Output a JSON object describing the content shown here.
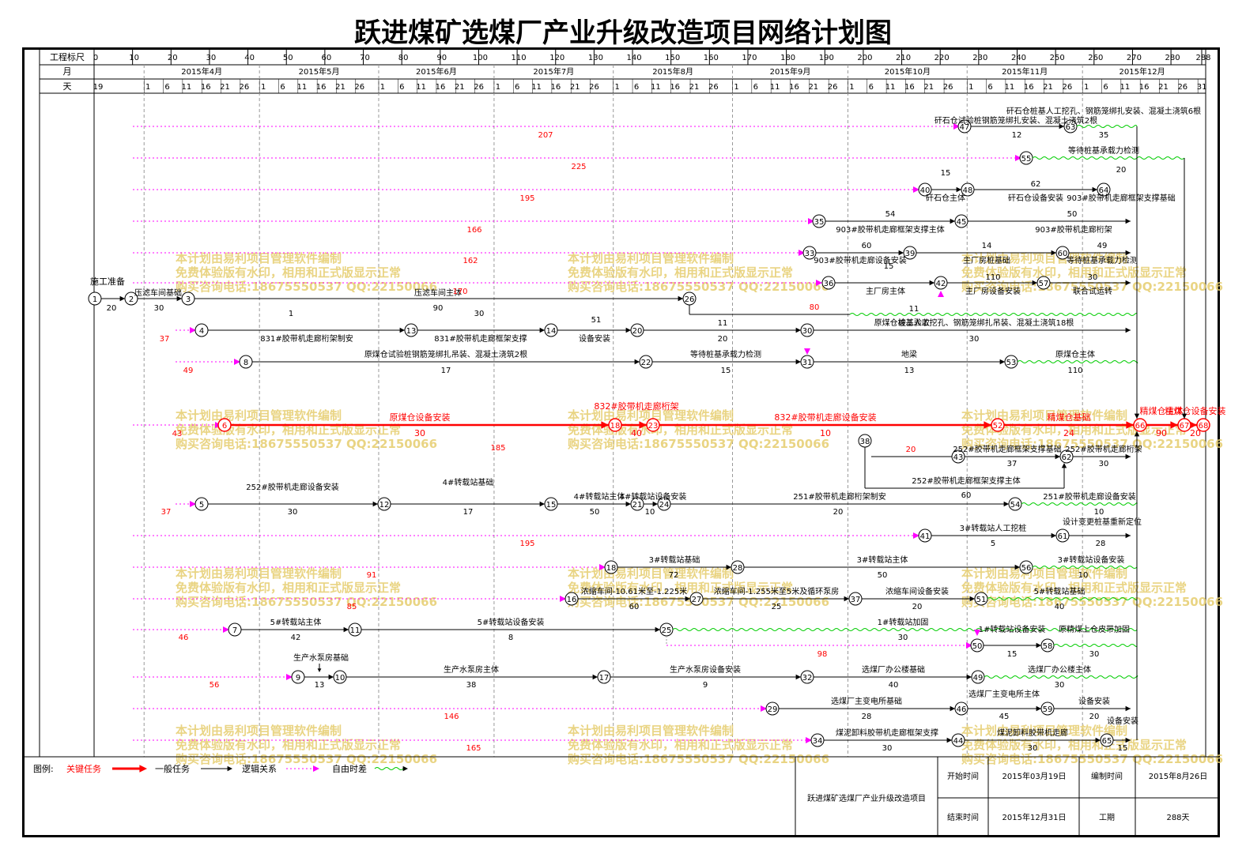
{
  "title": "跃进煤矿选煤厂产业升级改造项目网络计划图",
  "header": {
    "row_labels": [
      "工程标尺",
      "月",
      "天"
    ],
    "scale_ticks": [
      "0",
      "10",
      "20",
      "30",
      "40",
      "50",
      "60",
      "70",
      "80",
      "90",
      "100",
      "110",
      "120",
      "130",
      "140",
      "150",
      "160",
      "170",
      "180",
      "190",
      "200",
      "210",
      "220",
      "230",
      "240",
      "250",
      "260",
      "270",
      "280",
      "288"
    ],
    "months": [
      "2015年4月",
      "2015年5月",
      "2015年6月",
      "2015年7月",
      "2015年8月",
      "2015年9月",
      "2015年10月",
      "2015年11月",
      "2015年12月"
    ],
    "days": [
      "19",
      "1",
      "6",
      "11",
      "16",
      "21",
      "26",
      "1",
      "6",
      "11",
      "16",
      "21",
      "26",
      "1",
      "6",
      "11",
      "16",
      "21",
      "26",
      "1",
      "6",
      "11",
      "16",
      "21",
      "26",
      "1",
      "6",
      "11",
      "16",
      "21",
      "26",
      "1",
      "6",
      "11",
      "16",
      "21",
      "26",
      "1",
      "6",
      "11",
      "16",
      "21",
      "26",
      "1",
      "6",
      "11",
      "16",
      "21",
      "26",
      "1",
      "6",
      "11",
      "16",
      "21",
      "26",
      "31"
    ]
  },
  "watermark": [
    "本计划由易利项目管理软件编制",
    "免费体验版有水印，相用和正式版显示正常",
    "购买咨询电话:18675550537 QQ:22150066"
  ],
  "nodes": [
    "1",
    "2",
    "3",
    "4",
    "5",
    "6",
    "7",
    "8",
    "9",
    "10",
    "11",
    "12",
    "13",
    "14",
    "15",
    "16",
    "17",
    "18",
    "20",
    "21",
    "22",
    "23",
    "24",
    "25",
    "26",
    "27",
    "28",
    "29",
    "30",
    "31",
    "32",
    "33",
    "34",
    "35",
    "36",
    "37",
    "38",
    "39",
    "40",
    "41",
    "42",
    "43",
    "44",
    "45",
    "46",
    "47",
    "48",
    "49",
    "50",
    "51",
    "52",
    "53",
    "54",
    "55",
    "56",
    "57",
    "58",
    "59",
    "60",
    "61",
    "62",
    "63",
    "64",
    "65",
    "66",
    "67",
    "68"
  ],
  "task_labels": [
    "施工准备",
    "20",
    "压滤车间基础",
    "30",
    "压滤车间主体",
    "90",
    "矸石仓桩基人工挖孔、钢筋笼绑扎安装、混凝土浇筑6根",
    "35",
    "矸石仓试验桩钢筋笼绑扎安装、混凝土浇筑2根",
    "12",
    "等待桩基承载力检测",
    "15",
    "矸石仓主体",
    "62",
    "矸石仓设备安装",
    "20",
    "903#胶带机走廊框架支撑基础",
    "54",
    "903#胶带机走廊框架支撑主体",
    "50",
    "903#胶带机走廊桁架",
    "60",
    "903#胶带机走廊设备安装",
    "14",
    "主厂房桩基础",
    "49",
    "等待桩基承载力检测",
    "15",
    "主厂房主体",
    "110",
    "主厂房设备安装",
    "30",
    "联合试运转",
    "11",
    "竣工验收",
    "1",
    "831#胶带机走廊桁架制安",
    "30",
    "831#胶带机走廊框架支撑",
    "51",
    "设备安装",
    "11",
    "20",
    "原煤仓桩基人工挖孔、钢筋笼绑扎吊装、混凝土浇筑18根",
    "30",
    "原煤仓试验桩钢筋笼绑扎吊装、混凝土浇筑2根",
    "17",
    "等待桩基承载力检测",
    "15",
    "地梁",
    "13",
    "原煤仓主体",
    "110",
    "原煤仓设备安装",
    "30",
    "832#胶带机走廊桁架",
    "40",
    "832#胶带机走廊设备安装",
    "10",
    "精煤仓基础",
    "24",
    "精煤仓主体",
    "90",
    "精煤仓设备安装",
    "20",
    "252#胶带机走廊框架支撑基础",
    "37",
    "252#胶带机走廊框架支撑主体",
    "60",
    "252#胶带机走廊桁架",
    "30",
    "252#胶带机走廊设备安装",
    "30",
    "4#转载站基础",
    "17",
    "4#转载站主体",
    "50",
    "4#转载站设备安装",
    "10",
    "251#胶带机走廊桁架制安",
    "20",
    "251#胶带机走廊设备安装",
    "10",
    "3#转载站人工挖桩",
    "5",
    "设计变更桩基重新定位",
    "28",
    "3#转载站基础",
    "72",
    "3#转载站主体",
    "50",
    "3#转载站设备安装",
    "10",
    "浓缩车间-10.61米至-1.225米",
    "60",
    "浓缩车间-1.255米至5米及循环泵房",
    "25",
    "浓缩车间设备安装",
    "20",
    "5#转载站基础",
    "40",
    "5#转载站主体",
    "42",
    "5#转载站设备安装",
    "8",
    "1#转载站加固",
    "30",
    "1#转载站设备安装",
    "15",
    "原精煤上仓皮带加固",
    "30",
    "生产水泵房基础",
    "13",
    "生产水泵房主体",
    "38",
    "生产水泵房设备安装",
    "9",
    "选煤厂办公楼基础",
    "40",
    "选煤厂办公楼主体",
    "30",
    "选煤厂主变电所基础",
    "28",
    "选煤厂主变电所主体",
    "45",
    "设备安装",
    "20",
    "煤泥卸料胶带机走廊框架支撑",
    "30",
    "煤泥卸料胶带机走廊",
    "30",
    "设备安装",
    "15",
    "设备安装",
    "60"
  ],
  "free_float": [
    "207",
    "225",
    "195",
    "166",
    "162",
    "170",
    "80",
    "37",
    "49",
    "43",
    "185",
    "20",
    "37",
    "195",
    "91",
    "85",
    "46",
    "98",
    "56",
    "146",
    "165"
  ],
  "legend": {
    "label": "图例:",
    "critical": "关键任务",
    "normal": "一般任务",
    "logic": "逻辑关系",
    "free": "自由时差"
  },
  "info": {
    "project": "跃进煤矿选煤厂产业升级改造项目",
    "start_label": "开始时间",
    "start_value": "2015年03月19日",
    "end_label": "结束时间",
    "end_value": "2015年12月31日",
    "made_label": "编制时间",
    "made_value": "2015年8月26日",
    "duration_label": "工期",
    "duration_value": "288天"
  },
  "colors": {
    "critical": "#ff0000",
    "free_float": "#ff00ff",
    "slack_wave": "#00cc00",
    "watermark": "#e6cd6e"
  }
}
